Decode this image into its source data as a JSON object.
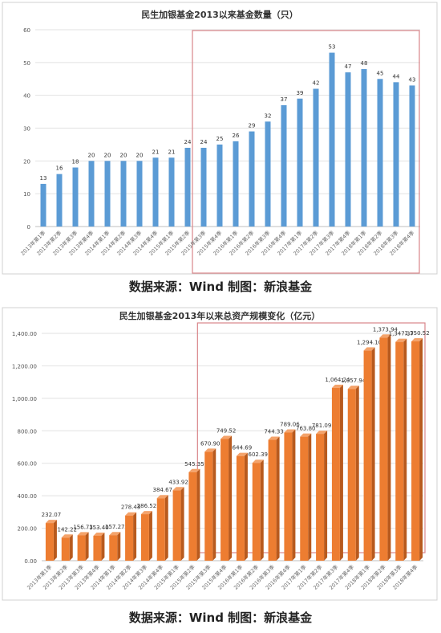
{
  "chart_data": [
    {
      "type": "bar",
      "title": "民生加银基金2013以来基金数量（只）",
      "categories": [
        "2013年第1季",
        "2013年第2季",
        "2013年第3季",
        "2013年第4季",
        "2014年第1季",
        "2014年第2季",
        "2014年第3季",
        "2014年第4季",
        "2015年第1季",
        "2015年第2季",
        "2015年第3季",
        "2015年第4季",
        "2016年第1季",
        "2016年第2季",
        "2016年第3季",
        "2016年第4季",
        "2017年第1季",
        "2017年第2季",
        "2017年第3季",
        "2017年第4季",
        "2018年第1季",
        "2018年第2季",
        "2018年第3季",
        "2018年第4季"
      ],
      "values": [
        13,
        16,
        18,
        20,
        20,
        20,
        20,
        21,
        21,
        24,
        24,
        25,
        26,
        29,
        32,
        37,
        39,
        42,
        53,
        47,
        48,
        45,
        44,
        43
      ],
      "data_labels": [
        "13",
        "16",
        "18",
        "20",
        "20",
        "20",
        "20",
        "21",
        "21",
        "24",
        "24",
        "25",
        "26",
        "29",
        "32",
        "37",
        "39",
        "42",
        "53",
        "47",
        "48",
        "45",
        "44",
        "43"
      ],
      "y_ticks": [
        "0",
        "10",
        "20",
        "30",
        "40",
        "50",
        "60"
      ],
      "ylim": [
        0,
        60
      ],
      "grid": true,
      "highlight_from_index": 10,
      "bar_color": "#5b9bd5",
      "highlight_color": "#d9868a"
    },
    {
      "type": "bar",
      "title": "民生加银基金2013年以来总资产规模变化（亿元）",
      "categories": [
        "2013年第1季",
        "2013年第2季",
        "2013年第3季",
        "2013年第4季",
        "2014年第1季",
        "2014年第2季",
        "2014年第3季",
        "2014年第4季",
        "2015年第1季",
        "2015年第2季",
        "2015年第3季",
        "2015年第4季",
        "2016年第1季",
        "2016年第2季",
        "2016年第3季",
        "2016年第4季",
        "2017年第1季",
        "2017年第2季",
        "2017年第3季",
        "2017年第4季",
        "2018年第1季",
        "2018年第2季",
        "2018年第3季",
        "2018年第4季"
      ],
      "values": [
        232.07,
        142.22,
        156.73,
        153.4,
        157.27,
        278.43,
        286.52,
        384.67,
        433.92,
        545.35,
        670.9,
        749.52,
        644.69,
        602.39,
        744.33,
        789.06,
        763.8,
        781.09,
        1064.24,
        1057.94,
        1294.1,
        1373.94,
        1347.37,
        1350.52
      ],
      "data_labels": [
        "232.07",
        "142.22",
        "156.73",
        "153.40",
        "157.27",
        "278.43",
        "286.52",
        "384.67",
        "433.92",
        "545.35",
        "670.90",
        "749.52",
        "644.69",
        "602.39",
        "744.33",
        "789.06",
        "763.80",
        "781.09",
        "1,064.24",
        "1,057.94",
        "1,294.10",
        "1,373.94",
        "1,347.37",
        "1,350.52"
      ],
      "y_ticks": [
        "0.00",
        "200.00",
        "400.00",
        "600.00",
        "800.00",
        "1,000.00",
        "1,200.00",
        "1,400.00"
      ],
      "ylim": [
        0,
        1400
      ],
      "grid": true,
      "highlight_from_index": 10,
      "bar_color": "#ed7d31",
      "highlight_color": "#d9868a"
    }
  ],
  "sources": [
    "数据来源：Wind  制图：新浪基金",
    "数据来源：Wind  制图：新浪基金"
  ]
}
